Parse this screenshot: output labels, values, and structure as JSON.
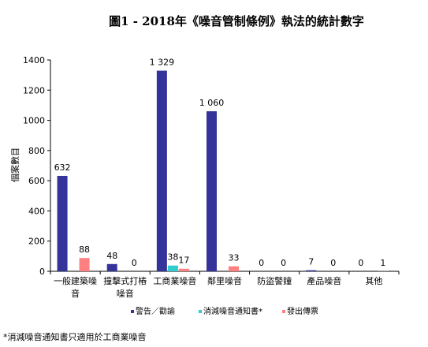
{
  "chart_data": {
    "type": "bar",
    "title": "圖1 - 2018年《噪音管制條例》執法的統計數字",
    "xlabel": "",
    "ylabel": "個案數目",
    "ylim": [
      0,
      1400
    ],
    "yticks": [
      0,
      200,
      400,
      600,
      800,
      1000,
      1200,
      1400
    ],
    "categories": [
      [
        "一般建築噪",
        "音"
      ],
      [
        "撞擊式打樁",
        "噪音"
      ],
      [
        "工商業噪音"
      ],
      [
        "鄰里噪音"
      ],
      [
        "防盜警鐘"
      ],
      [
        "產品噪音"
      ],
      [
        "其他"
      ]
    ],
    "series": [
      {
        "name": "警告／勸諭",
        "color": "#333399",
        "values": [
          632,
          48,
          1329,
          1060,
          0,
          7,
          0
        ],
        "labels": [
          "632",
          "48",
          "1 329",
          "1 060",
          "0",
          "7",
          "0"
        ]
      },
      {
        "name": "消減噪音通知書*",
        "color": "#33CCCC",
        "values": [
          null,
          null,
          38,
          null,
          null,
          null,
          null
        ],
        "labels": [
          null,
          null,
          "38",
          null,
          null,
          null,
          null
        ]
      },
      {
        "name": "發出傳票",
        "color": "#FF8080",
        "values": [
          88,
          0,
          17,
          33,
          0,
          0,
          1
        ],
        "labels": [
          "88",
          "0",
          "17",
          "33",
          "0",
          "0",
          "1"
        ]
      }
    ],
    "grid": false,
    "legend_position": "bottom"
  },
  "footnote": "*消減噪音通知書只適用於工商業噪音"
}
